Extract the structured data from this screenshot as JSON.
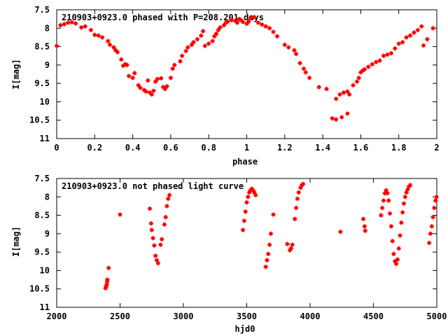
{
  "colors": {
    "marker": "#ff0000",
    "axis": "#000000",
    "background": "#ffffff"
  },
  "chart_data": [
    {
      "type": "scatter",
      "title": "210903+0923.0 phased with P=208.201 days",
      "xlabel": "phase",
      "ylabel": "I[mag]",
      "xlim": [
        0,
        2
      ],
      "ylim": [
        7.5,
        11
      ],
      "y_inverted": true,
      "grid": false,
      "legend": "none",
      "x_ticks": [
        0,
        0.2,
        0.4,
        0.6,
        0.8,
        1,
        1.2,
        1.4,
        1.6,
        1.8,
        2
      ],
      "x_tick_labels": [
        "0",
        "0.2",
        "0.4",
        "0.6",
        "0.8",
        "1",
        "1.2",
        "1.4",
        "1.6",
        "1.8",
        "2"
      ],
      "y_ticks": [
        7.5,
        8,
        8.5,
        9,
        9.5,
        10,
        10.5,
        11
      ],
      "y_tick_labels": [
        "7.5",
        "8",
        "8.5",
        "9",
        "9.5",
        "10",
        "10.5",
        "11"
      ],
      "series": [
        {
          "marker": "plus",
          "color": "#ff0000",
          "points": [
            [
              0.0,
              8.48
            ],
            [
              0.02,
              7.92
            ],
            [
              0.04,
              7.89
            ],
            [
              0.06,
              7.85
            ],
            [
              0.08,
              7.84
            ],
            [
              0.1,
              7.87
            ],
            [
              0.13,
              7.98
            ],
            [
              0.15,
              7.95
            ],
            [
              0.18,
              8.05
            ],
            [
              0.2,
              8.18
            ],
            [
              0.22,
              8.2
            ],
            [
              0.24,
              8.25
            ],
            [
              0.27,
              8.35
            ],
            [
              0.28,
              8.45
            ],
            [
              0.3,
              8.52
            ],
            [
              0.31,
              8.6
            ],
            [
              0.32,
              8.65
            ],
            [
              0.34,
              8.85
            ],
            [
              0.35,
              9.02
            ],
            [
              0.36,
              8.98
            ],
            [
              0.37,
              9.0
            ],
            [
              0.38,
              9.3
            ],
            [
              0.4,
              9.35
            ],
            [
              0.41,
              9.22
            ],
            [
              0.43,
              9.55
            ],
            [
              0.44,
              9.62
            ],
            [
              0.46,
              9.68
            ],
            [
              0.47,
              9.72
            ],
            [
              0.48,
              9.42
            ],
            [
              0.49,
              9.75
            ],
            [
              0.5,
              9.8
            ],
            [
              0.51,
              9.7
            ],
            [
              0.52,
              9.45
            ],
            [
              0.53,
              9.38
            ],
            [
              0.55,
              9.36
            ],
            [
              0.56,
              9.6
            ],
            [
              0.57,
              9.65
            ],
            [
              0.58,
              9.58
            ],
            [
              0.6,
              9.35
            ],
            [
              0.61,
              9.1
            ],
            [
              0.62,
              9.0
            ],
            [
              0.65,
              8.9
            ],
            [
              0.66,
              8.75
            ],
            [
              0.68,
              8.62
            ],
            [
              0.69,
              8.52
            ],
            [
              0.71,
              8.45
            ],
            [
              0.72,
              8.38
            ],
            [
              0.74,
              8.3
            ],
            [
              0.76,
              8.2
            ],
            [
              0.77,
              8.08
            ],
            [
              0.78,
              8.48
            ],
            [
              0.8,
              8.42
            ],
            [
              0.82,
              8.35
            ],
            [
              0.83,
              8.22
            ],
            [
              0.84,
              8.15
            ],
            [
              0.85,
              8.05
            ],
            [
              0.86,
              7.98
            ],
            [
              0.88,
              7.92
            ],
            [
              0.89,
              7.85
            ],
            [
              0.9,
              7.82
            ],
            [
              0.92,
              7.78
            ],
            [
              0.94,
              7.8
            ],
            [
              0.95,
              7.85
            ],
            [
              0.96,
              7.75
            ],
            [
              0.97,
              7.78
            ],
            [
              0.98,
              7.83
            ],
            [
              1.0,
              7.88
            ],
            [
              1.01,
              7.82
            ],
            [
              1.02,
              7.72
            ],
            [
              1.04,
              7.7
            ],
            [
              1.06,
              7.85
            ],
            [
              1.08,
              7.9
            ],
            [
              1.1,
              7.95
            ],
            [
              1.12,
              8.0
            ],
            [
              1.14,
              8.1
            ],
            [
              1.16,
              8.22
            ],
            [
              1.2,
              8.45
            ],
            [
              1.22,
              8.52
            ],
            [
              1.25,
              8.6
            ],
            [
              1.26,
              8.7
            ],
            [
              1.28,
              8.95
            ],
            [
              1.3,
              9.1
            ],
            [
              1.31,
              9.2
            ],
            [
              1.33,
              9.35
            ],
            [
              1.38,
              9.6
            ],
            [
              1.42,
              9.65
            ],
            [
              1.45,
              10.45
            ],
            [
              1.47,
              10.48
            ],
            [
              1.5,
              10.42
            ],
            [
              1.53,
              10.32
            ],
            [
              1.47,
              9.92
            ],
            [
              1.49,
              9.8
            ],
            [
              1.51,
              9.75
            ],
            [
              1.53,
              9.72
            ],
            [
              1.54,
              9.8
            ],
            [
              1.56,
              9.55
            ],
            [
              1.58,
              9.45
            ],
            [
              1.59,
              9.35
            ],
            [
              1.6,
              9.2
            ],
            [
              1.61,
              9.15
            ],
            [
              1.62,
              9.12
            ],
            [
              1.64,
              9.05
            ],
            [
              1.66,
              8.98
            ],
            [
              1.68,
              8.92
            ],
            [
              1.7,
              8.88
            ],
            [
              1.72,
              8.75
            ],
            [
              1.74,
              8.72
            ],
            [
              1.76,
              8.68
            ],
            [
              1.78,
              8.55
            ],
            [
              1.8,
              8.42
            ],
            [
              1.82,
              8.38
            ],
            [
              1.84,
              8.25
            ],
            [
              1.86,
              8.2
            ],
            [
              1.88,
              8.12
            ],
            [
              1.9,
              8.05
            ],
            [
              1.92,
              7.95
            ],
            [
              1.93,
              8.47
            ],
            [
              1.95,
              8.3
            ],
            [
              1.98,
              8.0
            ]
          ]
        }
      ]
    },
    {
      "type": "scatter",
      "title": "210903+0923.0 not phased light curve",
      "xlabel": "hjd0",
      "ylabel": "I[mag]",
      "xlim": [
        2000,
        5000
      ],
      "ylim": [
        7.5,
        11
      ],
      "y_inverted": true,
      "grid": false,
      "legend": "none",
      "x_ticks": [
        2000,
        2500,
        3000,
        3500,
        4000,
        4500,
        5000
      ],
      "x_tick_labels": [
        "2000",
        "2500",
        "3000",
        "3500",
        "4000",
        "4500",
        "5000"
      ],
      "y_ticks": [
        7.5,
        8,
        8.5,
        9,
        9.5,
        10,
        10.5,
        11
      ],
      "y_tick_labels": [
        "7.5",
        "8",
        "8.5",
        "9",
        "9.5",
        "10",
        "10.5",
        "11"
      ],
      "series": [
        {
          "marker": "plus",
          "color": "#ff0000",
          "points": [
            [
              2385,
              10.48
            ],
            [
              2390,
              10.43
            ],
            [
              2395,
              10.38
            ],
            [
              2398,
              10.3
            ],
            [
              2400,
              10.25
            ],
            [
              2410,
              9.93
            ],
            [
              2500,
              8.48
            ],
            [
              2735,
              8.32
            ],
            [
              2745,
              8.72
            ],
            [
              2750,
              8.9
            ],
            [
              2760,
              9.12
            ],
            [
              2770,
              9.32
            ],
            [
              2780,
              9.6
            ],
            [
              2790,
              9.72
            ],
            [
              2800,
              9.8
            ],
            [
              2820,
              9.3
            ],
            [
              2830,
              9.15
            ],
            [
              2850,
              8.75
            ],
            [
              2860,
              8.55
            ],
            [
              2870,
              8.25
            ],
            [
              2880,
              8.05
            ],
            [
              2890,
              7.95
            ],
            [
              3470,
              8.9
            ],
            [
              3480,
              8.65
            ],
            [
              3490,
              8.4
            ],
            [
              3500,
              8.15
            ],
            [
              3510,
              8.0
            ],
            [
              3520,
              7.88
            ],
            [
              3530,
              7.82
            ],
            [
              3540,
              7.78
            ],
            [
              3550,
              7.82
            ],
            [
              3560,
              7.88
            ],
            [
              3570,
              7.95
            ],
            [
              3650,
              9.9
            ],
            [
              3660,
              9.72
            ],
            [
              3670,
              9.55
            ],
            [
              3680,
              9.3
            ],
            [
              3690,
              9.0
            ],
            [
              3710,
              8.48
            ],
            [
              3820,
              9.28
            ],
            [
              3840,
              9.45
            ],
            [
              3850,
              9.4
            ],
            [
              3860,
              9.3
            ],
            [
              3880,
              8.6
            ],
            [
              3890,
              8.3
            ],
            [
              3900,
              8.05
            ],
            [
              3910,
              7.88
            ],
            [
              3925,
              7.75
            ],
            [
              3935,
              7.68
            ],
            [
              3945,
              7.65
            ],
            [
              4240,
              8.95
            ],
            [
              4420,
              8.6
            ],
            [
              4430,
              8.8
            ],
            [
              4435,
              8.92
            ],
            [
              4560,
              8.5
            ],
            [
              4570,
              8.3
            ],
            [
              4580,
              8.1
            ],
            [
              4590,
              7.9
            ],
            [
              4600,
              7.82
            ],
            [
              4610,
              7.9
            ],
            [
              4620,
              8.1
            ],
            [
              4630,
              8.45
            ],
            [
              4640,
              8.8
            ],
            [
              4650,
              9.2
            ],
            [
              4660,
              9.55
            ],
            [
              4670,
              9.75
            ],
            [
              4680,
              9.82
            ],
            [
              4690,
              9.7
            ],
            [
              4700,
              9.4
            ],
            [
              4710,
              9.05
            ],
            [
              4720,
              8.7
            ],
            [
              4730,
              8.42
            ],
            [
              4740,
              8.18
            ],
            [
              4750,
              8.0
            ],
            [
              4760,
              7.88
            ],
            [
              4770,
              7.8
            ],
            [
              4780,
              7.72
            ],
            [
              4790,
              7.68
            ],
            [
              4940,
              9.25
            ],
            [
              4950,
              9.0
            ],
            [
              4960,
              8.8
            ],
            [
              4970,
              8.55
            ],
            [
              4980,
              8.3
            ],
            [
              4990,
              8.1
            ],
            [
              4998,
              8.0
            ]
          ]
        }
      ]
    }
  ]
}
